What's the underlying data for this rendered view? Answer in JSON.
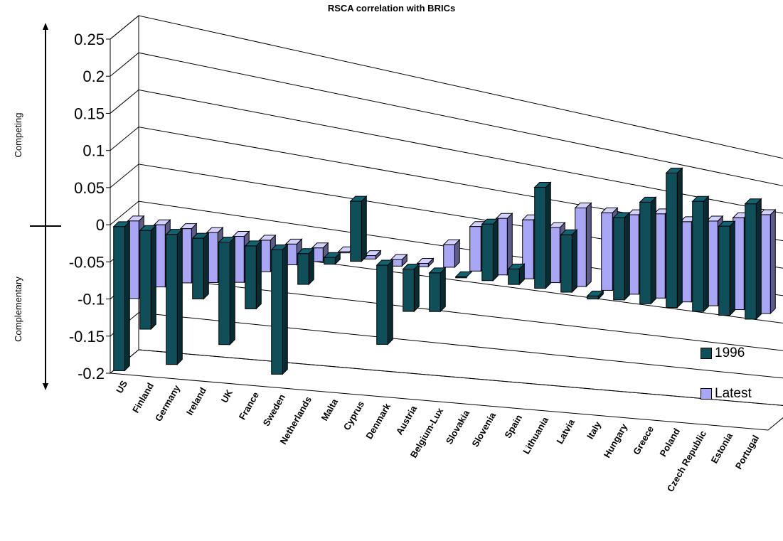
{
  "chart_data": {
    "type": "bar",
    "title": "RSCA correlation with BRICs",
    "annotations": {
      "top": "Competing",
      "bottom": "Complementary"
    },
    "ylim": [
      -0.2,
      0.25
    ],
    "yticks": [
      "0.25",
      "0.2",
      "0.15",
      "0.1",
      "0.05",
      "0",
      "-0.05",
      "-0.1",
      "-0.15",
      "-0.2"
    ],
    "grid": true,
    "legend_position": "right",
    "categories": [
      "US",
      "Finland",
      "Germany",
      "Ireland",
      "UK",
      "France",
      "Sweden",
      "Netherlands",
      "Malta",
      "Cyprus",
      "Denmark",
      "Austria",
      "Belgium-Lux",
      "Slovakia",
      "Slovenia",
      "Spain",
      "Lithuania",
      "Latvia",
      "Italy",
      "Hungary",
      "Greece",
      "Poland",
      "Czech Republic",
      "Estonia",
      "Portugal"
    ],
    "series": [
      {
        "name": "1996",
        "color": "#0e4f5a",
        "values": [
          -0.195,
          -0.135,
          -0.18,
          -0.085,
          -0.145,
          -0.09,
          -0.18,
          -0.045,
          -0.01,
          0.09,
          -0.12,
          -0.065,
          -0.06,
          0.0,
          0.09,
          0.025,
          0.165,
          0.095,
          -0.005,
          0.14,
          0.175,
          0.235,
          0.195,
          0.16,
          0.21
        ]
      },
      {
        "name": "Latest",
        "color": "#a9a7f5",
        "values": [
          -0.105,
          -0.085,
          -0.075,
          -0.07,
          -0.065,
          -0.045,
          -0.03,
          -0.02,
          0.0,
          -0.005,
          -0.01,
          -0.005,
          0.035,
          0.07,
          0.09,
          0.095,
          0.09,
          0.13,
          0.13,
          0.135,
          0.145,
          0.14,
          0.15,
          0.165,
          0.18
        ]
      }
    ]
  }
}
